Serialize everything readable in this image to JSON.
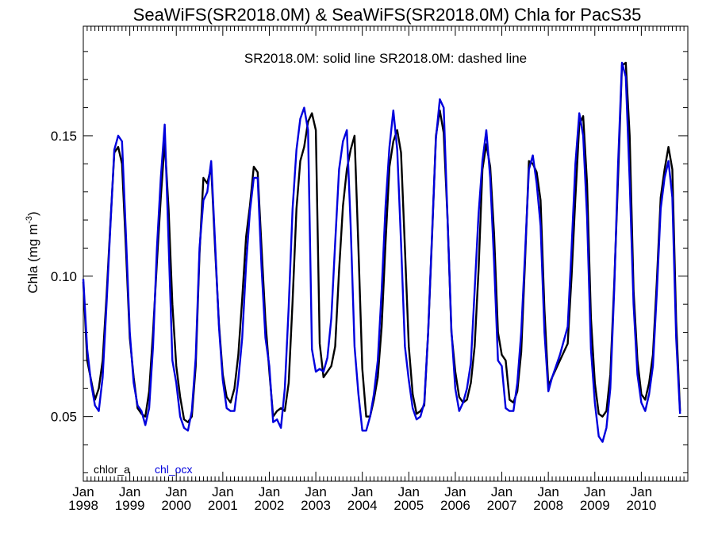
{
  "chart_data": {
    "type": "line",
    "title": "SeaWiFS(SR2018.0M) & SeaWiFS(SR2018.0M)  Chla for PacS35",
    "subtitle": "SR2018.0M: solid line   SR2018.0M: dashed line",
    "ylabel_main": "Chla (mg m",
    "ylabel_sup": "-3",
    "ylabel_end": ")",
    "xlabel": "",
    "ylim": [
      0.027,
      0.189
    ],
    "xlim": [
      1998.0,
      2011.0
    ],
    "yticks": [
      0.05,
      0.1,
      0.15
    ],
    "ytick_labels": [
      "0.05",
      "0.10",
      "0.15"
    ],
    "xticks": [
      {
        "month": "Jan",
        "year": "1998",
        "x": 1998
      },
      {
        "month": "Jan",
        "year": "1999",
        "x": 1999
      },
      {
        "month": "Jan",
        "year": "2000",
        "x": 2000
      },
      {
        "month": "Jan",
        "year": "2001",
        "x": 2001
      },
      {
        "month": "Jan",
        "year": "2002",
        "x": 2002
      },
      {
        "month": "Jan",
        "year": "2003",
        "x": 2003
      },
      {
        "month": "Jan",
        "year": "2004",
        "x": 2004
      },
      {
        "month": "Jan",
        "year": "2005",
        "x": 2005
      },
      {
        "month": "Jan",
        "year": "2006",
        "x": 2006
      },
      {
        "month": "Jan",
        "year": "2007",
        "x": 2007
      },
      {
        "month": "Jan",
        "year": "2008",
        "x": 2008
      },
      {
        "month": "Jan",
        "year": "2009",
        "x": 2009
      },
      {
        "month": "Jan",
        "year": "2010",
        "x": 2010
      }
    ],
    "series": [
      {
        "name": "chlor_a",
        "color": "#000000",
        "values": [
          0.098,
          0.07,
          0.063,
          0.056,
          0.06,
          0.07,
          0.093,
          0.119,
          0.144,
          0.146,
          0.14,
          0.11,
          0.078,
          0.064,
          0.053,
          0.051,
          0.05,
          0.059,
          0.08,
          0.105,
          0.128,
          0.148,
          0.124,
          0.09,
          0.068,
          0.057,
          0.049,
          0.048,
          0.05,
          0.068,
          0.108,
          0.135,
          0.133,
          0.139,
          0.11,
          0.083,
          0.065,
          0.057,
          0.055,
          0.06,
          0.072,
          0.092,
          0.114,
          0.125,
          0.139,
          0.137,
          0.11,
          0.084,
          0.066,
          0.05,
          0.052,
          0.053,
          0.052,
          0.062,
          0.091,
          0.124,
          0.141,
          0.146,
          0.155,
          0.158,
          0.152,
          0.076,
          0.064,
          0.066,
          0.068,
          0.075,
          0.102,
          0.125,
          0.138,
          0.145,
          0.15,
          0.11,
          0.067,
          0.05,
          0.05,
          0.056,
          0.064,
          0.082,
          0.112,
          0.139,
          0.148,
          0.152,
          0.144,
          0.11,
          0.075,
          0.058,
          0.051,
          0.052,
          0.054,
          0.08,
          0.114,
          0.15,
          0.159,
          0.151,
          0.12,
          0.08,
          0.066,
          0.057,
          0.055,
          0.056,
          0.062,
          0.075,
          0.102,
          0.138,
          0.147,
          0.139,
          0.115,
          0.08,
          0.072,
          0.07,
          0.056,
          0.055,
          0.059,
          0.073,
          0.105,
          0.141,
          0.14,
          0.137,
          0.127,
          0.088,
          0.061,
          0.064,
          0.067,
          0.07,
          0.073,
          0.076,
          0.1,
          0.128,
          0.154,
          0.157,
          0.133,
          0.085,
          0.062,
          0.051,
          0.05,
          0.052,
          0.065,
          0.097,
          0.135,
          0.175,
          0.176,
          0.15,
          0.095,
          0.07,
          0.058,
          0.056,
          0.062,
          0.072,
          0.098,
          0.128,
          0.138,
          0.146,
          0.138,
          0.084,
          0.052
        ]
      },
      {
        "name": "chl_ocx",
        "color": "#0000dd",
        "values": [
          0.099,
          0.074,
          0.062,
          0.054,
          0.052,
          0.064,
          0.09,
          0.118,
          0.145,
          0.15,
          0.148,
          0.115,
          0.08,
          0.062,
          0.054,
          0.052,
          0.047,
          0.053,
          0.075,
          0.11,
          0.135,
          0.154,
          0.112,
          0.07,
          0.062,
          0.05,
          0.046,
          0.045,
          0.052,
          0.071,
          0.11,
          0.127,
          0.13,
          0.141,
          0.112,
          0.082,
          0.063,
          0.053,
          0.052,
          0.052,
          0.063,
          0.078,
          0.104,
          0.123,
          0.135,
          0.135,
          0.103,
          0.078,
          0.068,
          0.048,
          0.049,
          0.046,
          0.06,
          0.089,
          0.124,
          0.145,
          0.156,
          0.16,
          0.152,
          0.074,
          0.066,
          0.067,
          0.066,
          0.071,
          0.085,
          0.112,
          0.138,
          0.148,
          0.152,
          0.118,
          0.075,
          0.058,
          0.045,
          0.045,
          0.05,
          0.058,
          0.07,
          0.095,
          0.125,
          0.146,
          0.159,
          0.145,
          0.112,
          0.075,
          0.063,
          0.053,
          0.049,
          0.05,
          0.055,
          0.08,
          0.115,
          0.149,
          0.163,
          0.16,
          0.12,
          0.081,
          0.06,
          0.052,
          0.055,
          0.06,
          0.069,
          0.095,
          0.122,
          0.141,
          0.152,
          0.135,
          0.105,
          0.07,
          0.068,
          0.053,
          0.052,
          0.052,
          0.062,
          0.08,
          0.108,
          0.138,
          0.143,
          0.133,
          0.118,
          0.08,
          0.059,
          0.064,
          0.068,
          0.072,
          0.077,
          0.082,
          0.11,
          0.14,
          0.158,
          0.15,
          0.121,
          0.074,
          0.055,
          0.043,
          0.041,
          0.046,
          0.06,
          0.095,
          0.14,
          0.176,
          0.171,
          0.134,
          0.09,
          0.065,
          0.055,
          0.052,
          0.058,
          0.068,
          0.094,
          0.124,
          0.135,
          0.141,
          0.128,
          0.078,
          0.051
        ]
      }
    ],
    "legend_placement": "bottom-left",
    "grid": false
  }
}
